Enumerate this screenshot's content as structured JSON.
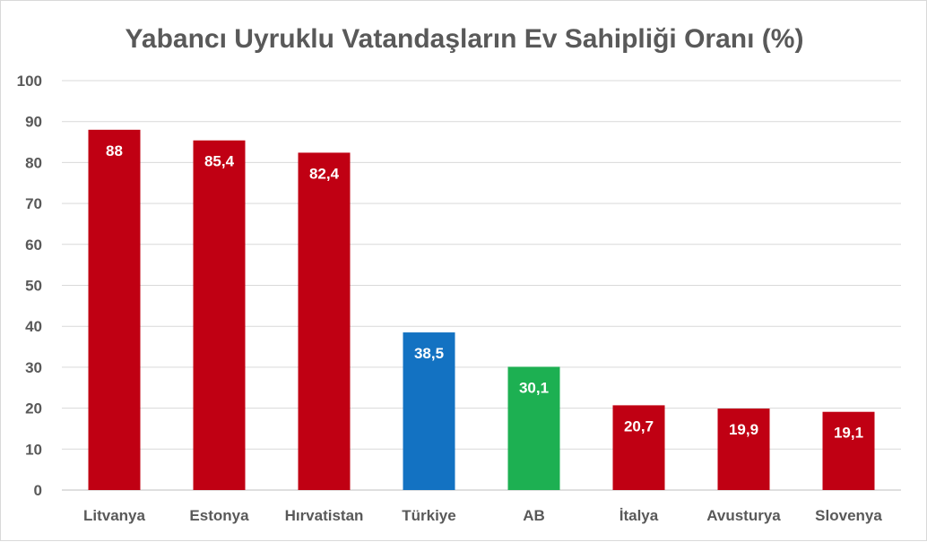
{
  "chart_data": {
    "type": "bar",
    "title": "Yabancı Uyruklu Vatandaşların Ev Sahipliği Oranı (%)",
    "categories": [
      "Litvanya",
      "Estonya",
      "Hırvatistan",
      "Türkiye",
      "AB",
      "İtalya",
      "Avusturya",
      "Slovenya"
    ],
    "values": [
      88,
      85.4,
      82.4,
      38.5,
      30.1,
      20.7,
      19.9,
      19.1
    ],
    "value_labels": [
      "88",
      "85,4",
      "82,4",
      "38,5",
      "30,1",
      "20,7",
      "19,9",
      "19,1"
    ],
    "bar_colors": [
      "#c00013",
      "#c00013",
      "#c00013",
      "#1372c2",
      "#1db052",
      "#c00013",
      "#c00013",
      "#c00013"
    ],
    "ylim": [
      0,
      100
    ],
    "yticks": [
      0,
      10,
      20,
      30,
      40,
      50,
      60,
      70,
      80,
      90,
      100
    ],
    "ytick_labels": [
      "0",
      "10",
      "20",
      "30",
      "40",
      "50",
      "60",
      "70",
      "80",
      "90",
      "100"
    ],
    "xlabel": "",
    "ylabel": "",
    "grid": true,
    "legend": "none"
  }
}
